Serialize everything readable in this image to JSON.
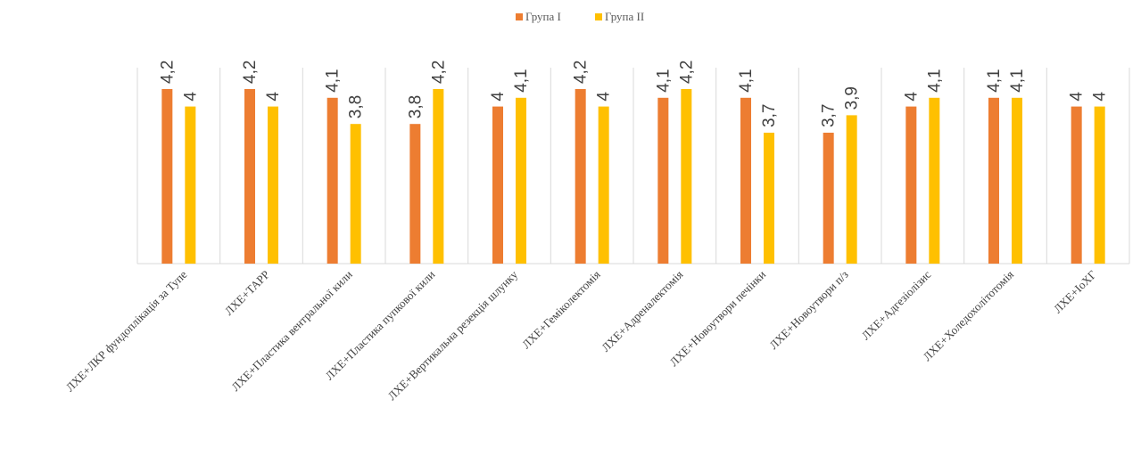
{
  "chart_data": {
    "type": "bar",
    "title": "",
    "xlabel": "",
    "ylabel": "",
    "ylim": [
      2.2,
      4.2
    ],
    "grid": false,
    "legend_position": "top-center",
    "categories": [
      "ЛХЕ+ЛКР фундоплікація за Тупе",
      "ЛХЕ+ТАРР",
      "ЛХЕ+Пластика вентральної кили",
      "ЛХЕ+Пластика пупкової кили",
      "ЛХЕ+Вертикальна резекція шлунку",
      "ЛХЕ+Геміколектомія",
      "ЛХЕ+Адреналектомія",
      "ЛХЕ+Новоутвори печінки",
      "ЛХЕ+Новоутвори п/з",
      "ЛХЕ+Адгезіолізис",
      "ЛХЕ+Холедохолітотомія",
      "ЛХЕ+IoXГ"
    ],
    "series": [
      {
        "name": "Група I",
        "color": "#ED7D31",
        "values": [
          4.2,
          4.2,
          4.1,
          3.8,
          4,
          4.2,
          4.1,
          4.1,
          3.7,
          4,
          4.1,
          4
        ],
        "labels": [
          "4,2",
          "4,2",
          "4,1",
          "3,8",
          "4",
          "4,2",
          "4,1",
          "4,1",
          "3,7",
          "4",
          "4,1",
          "4"
        ]
      },
      {
        "name": "Група II",
        "color": "#FFC000",
        "values": [
          4,
          4,
          3.8,
          4.2,
          4.1,
          4,
          4.2,
          3.7,
          3.9,
          4.1,
          4.1,
          4
        ],
        "labels": [
          "4",
          "4",
          "3,8",
          "4,2",
          "4,1",
          "4",
          "4,2",
          "3,7",
          "3,9",
          "4,1",
          "4,1",
          "4"
        ]
      }
    ]
  }
}
